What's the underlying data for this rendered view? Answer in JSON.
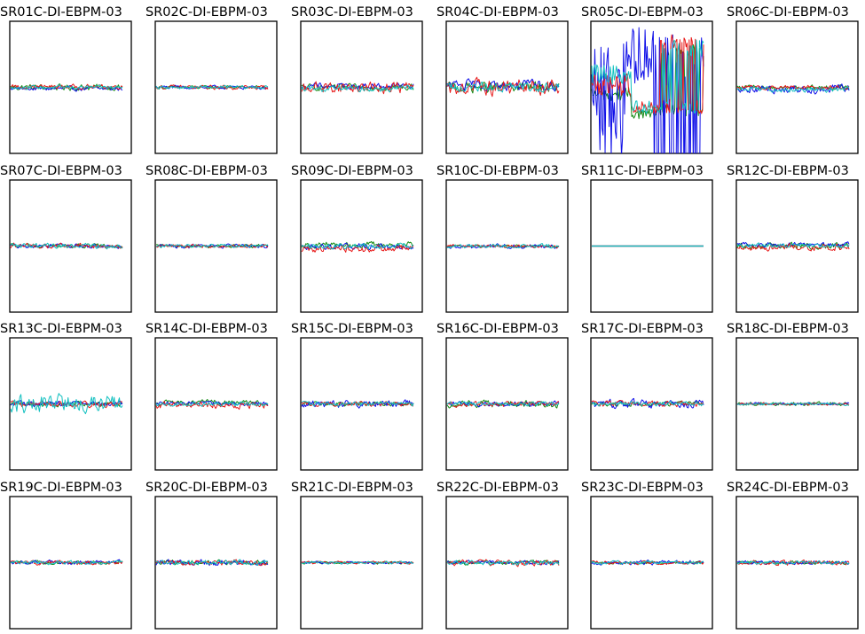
{
  "chart_data": {
    "type": "line",
    "layout": "6 columns x 4 rows of small-multiple line plots",
    "axes_visible": false,
    "series_colors": [
      "#e81a1a",
      "#1010e8",
      "#158a15",
      "#12c0c0"
    ],
    "plots": [
      {
        "title": "SR01C-DI-EBPM-03",
        "behavior": "noise",
        "levels": [
          0.05,
          0.05,
          0.07,
          0.04
        ],
        "offsets": [
          0.01,
          -0.02,
          0.0,
          0.0
        ]
      },
      {
        "title": "SR02C-DI-EBPM-03",
        "behavior": "noise",
        "levels": [
          0.05,
          0.04,
          0.04,
          0.04
        ],
        "offsets": [
          0.0,
          0.0,
          0.0,
          0.0
        ]
      },
      {
        "title": "SR03C-DI-EBPM-03",
        "behavior": "noise",
        "levels": [
          0.13,
          0.07,
          0.07,
          0.07
        ],
        "offsets": [
          0.0,
          0.02,
          0.0,
          -0.02
        ]
      },
      {
        "title": "SR04C-DI-EBPM-03",
        "behavior": "noise",
        "levels": [
          0.18,
          0.12,
          0.12,
          0.1
        ],
        "offsets": [
          0.0,
          0.03,
          0.0,
          0.0
        ]
      },
      {
        "title": "SR05C-DI-EBPM-03",
        "behavior": "unstable",
        "levels": [
          0.5,
          1.0,
          0.4,
          0.4
        ],
        "offsets": [
          0.0,
          0.0,
          0.0,
          0.0
        ]
      },
      {
        "title": "SR06C-DI-EBPM-03",
        "behavior": "noise",
        "levels": [
          0.05,
          0.1,
          0.05,
          0.06
        ],
        "offsets": [
          0.0,
          -0.02,
          0.0,
          -0.03
        ]
      },
      {
        "title": "SR07C-DI-EBPM-03",
        "behavior": "noise",
        "levels": [
          0.06,
          0.05,
          0.05,
          0.06
        ],
        "offsets": [
          0.0,
          0.0,
          0.0,
          0.0
        ]
      },
      {
        "title": "SR08C-DI-EBPM-03",
        "behavior": "noise",
        "levels": [
          0.04,
          0.05,
          0.04,
          0.04
        ],
        "offsets": [
          0.0,
          0.0,
          0.0,
          0.0
        ]
      },
      {
        "title": "SR09C-DI-EBPM-03",
        "behavior": "noise",
        "levels": [
          0.08,
          0.07,
          0.07,
          0.06
        ],
        "offsets": [
          -0.04,
          0.0,
          0.02,
          0.0
        ]
      },
      {
        "title": "SR10C-DI-EBPM-03",
        "behavior": "noise",
        "levels": [
          0.04,
          0.05,
          0.03,
          0.05
        ],
        "offsets": [
          0.0,
          0.0,
          0.0,
          0.0
        ]
      },
      {
        "title": "SR11C-DI-EBPM-03",
        "behavior": "flat",
        "levels": [
          0,
          0,
          0,
          0
        ],
        "offsets": [
          0.0,
          0.0,
          0.0,
          0.0
        ]
      },
      {
        "title": "SR12C-DI-EBPM-03",
        "behavior": "noise",
        "levels": [
          0.08,
          0.05,
          0.07,
          0.05
        ],
        "offsets": [
          -0.02,
          0.02,
          0.0,
          0.01
        ]
      },
      {
        "title": "SR13C-DI-EBPM-03",
        "behavior": "noise",
        "levels": [
          0.07,
          0.06,
          0.06,
          0.2
        ],
        "offsets": [
          0.0,
          0.0,
          0.0,
          0.0
        ]
      },
      {
        "title": "SR14C-DI-EBPM-03",
        "behavior": "noise",
        "levels": [
          0.08,
          0.05,
          0.06,
          0.05
        ],
        "offsets": [
          -0.02,
          0.0,
          0.02,
          0.0
        ]
      },
      {
        "title": "SR15C-DI-EBPM-03",
        "behavior": "noise",
        "levels": [
          0.05,
          0.08,
          0.05,
          0.05
        ],
        "offsets": [
          0.0,
          0.0,
          0.0,
          0.0
        ]
      },
      {
        "title": "SR16C-DI-EBPM-03",
        "behavior": "noise",
        "levels": [
          0.06,
          0.06,
          0.08,
          0.05
        ],
        "offsets": [
          0.0,
          0.0,
          0.0,
          0.0
        ]
      },
      {
        "title": "SR17C-DI-EBPM-03",
        "behavior": "noise",
        "levels": [
          0.06,
          0.09,
          0.05,
          0.05
        ],
        "offsets": [
          0.0,
          0.0,
          0.0,
          0.0
        ]
      },
      {
        "title": "SR18C-DI-EBPM-03",
        "behavior": "noise",
        "levels": [
          0.03,
          0.03,
          0.04,
          0.03
        ],
        "offsets": [
          0.0,
          0.0,
          0.0,
          0.0
        ]
      },
      {
        "title": "SR19C-DI-EBPM-03",
        "behavior": "noise",
        "levels": [
          0.05,
          0.05,
          0.04,
          0.04
        ],
        "offsets": [
          0.0,
          0.0,
          0.0,
          0.0
        ]
      },
      {
        "title": "SR20C-DI-EBPM-03",
        "behavior": "noise",
        "levels": [
          0.06,
          0.07,
          0.06,
          0.06
        ],
        "offsets": [
          0.0,
          0.0,
          0.0,
          0.0
        ]
      },
      {
        "title": "SR21C-DI-EBPM-03",
        "behavior": "noise",
        "levels": [
          0.03,
          0.03,
          0.03,
          0.03
        ],
        "offsets": [
          0.0,
          0.0,
          0.0,
          0.0
        ]
      },
      {
        "title": "SR22C-DI-EBPM-03",
        "behavior": "noise",
        "levels": [
          0.07,
          0.05,
          0.05,
          0.05
        ],
        "offsets": [
          0.0,
          0.0,
          0.0,
          0.0
        ]
      },
      {
        "title": "SR23C-DI-EBPM-03",
        "behavior": "noise",
        "levels": [
          0.04,
          0.05,
          0.03,
          0.04
        ],
        "offsets": [
          0.0,
          0.0,
          0.0,
          0.0
        ]
      },
      {
        "title": "SR24C-DI-EBPM-03",
        "behavior": "noise",
        "levels": [
          0.06,
          0.04,
          0.04,
          0.04
        ],
        "offsets": [
          0.0,
          0.0,
          0.0,
          0.0
        ]
      }
    ]
  }
}
